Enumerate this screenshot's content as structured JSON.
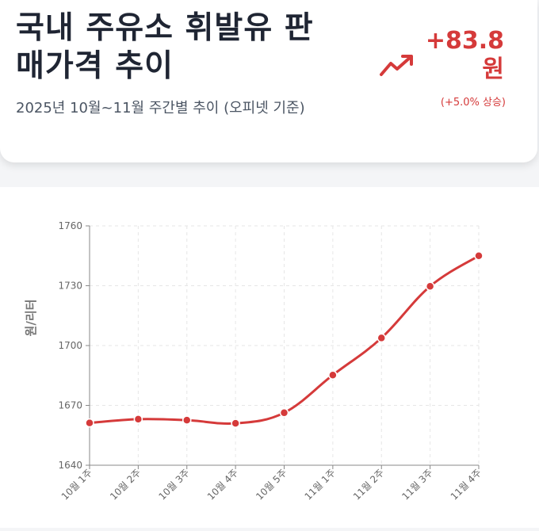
{
  "header": {
    "title_line1": "국내 주유소 휘발유 판",
    "title_line2": "매가격 추이",
    "subtitle": "2025년 10월~11월 주간별 추이 (오피넷 기준)",
    "change_value": "+83.8",
    "change_unit": "원",
    "change_pct": "(+5.0% 상승)",
    "trend_icon": "trending-up-icon"
  },
  "colors": {
    "accent": "#d53a3a",
    "title": "#1f2533",
    "grid": "#e6e6e6",
    "axis": "#888888"
  },
  "chart_data": {
    "type": "line",
    "title": "",
    "xlabel": "",
    "ylabel": "원/리터",
    "categories": [
      "10월 1주",
      "10월 2주",
      "10월 3주",
      "10월 4주",
      "10월 5주",
      "11월 1주",
      "11월 2주",
      "11월 3주",
      "11월 4주"
    ],
    "series": [
      {
        "values": [
          1661.2,
          1663.1,
          1662.6,
          1661.0,
          1666.3,
          1685.2,
          1703.8,
          1729.7,
          1745.0
        ]
      }
    ],
    "ylim": [
      1640,
      1760
    ],
    "yticks": [
      1640,
      1670,
      1700,
      1730,
      1760
    ],
    "grid": true,
    "smooth": true
  }
}
